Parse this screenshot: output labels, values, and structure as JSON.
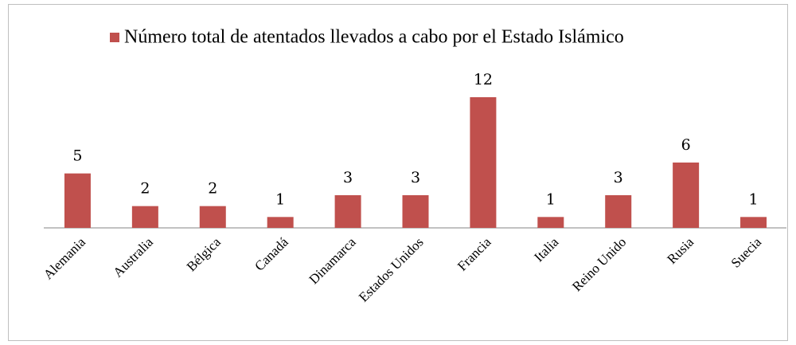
{
  "chart_data": {
    "type": "bar",
    "series": [
      {
        "name": "Número total de atentados llevados a cabo por el Estado Islámico",
        "color": "#c0504d",
        "values": [
          5,
          2,
          2,
          1,
          3,
          3,
          12,
          1,
          3,
          6,
          1
        ]
      }
    ],
    "categories": [
      "Alemania",
      "Australia",
      "Bélgica",
      "Canadá",
      "Dinamarca",
      "Estados Unidos",
      "Francia",
      "Italia",
      "Reino Unido",
      "Rusia",
      "Suecia"
    ],
    "legend": "top"
  }
}
